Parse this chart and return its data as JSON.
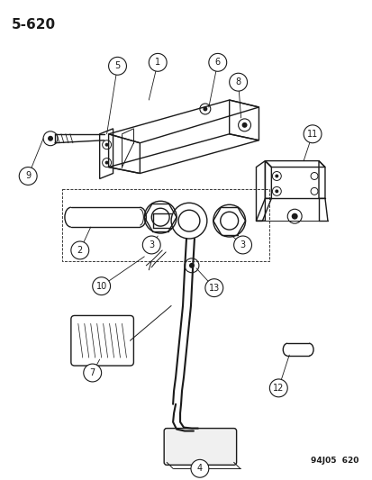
{
  "title": "5-620",
  "footer": "94J05  620",
  "bg_color": "#ffffff",
  "line_color": "#1a1a1a",
  "title_fontsize": 11,
  "footer_fontsize": 6.5,
  "label_fontsize": 7
}
